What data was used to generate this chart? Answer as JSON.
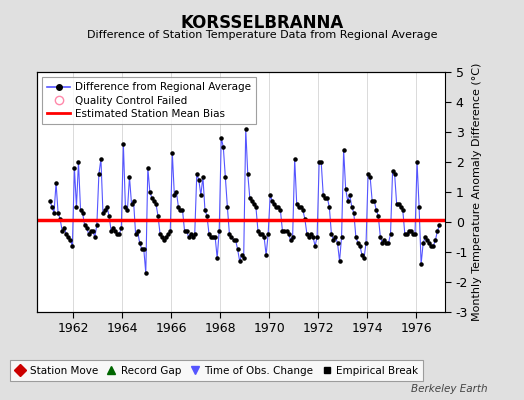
{
  "title": "KORSSELBRANNA",
  "subtitle": "Difference of Station Temperature Data from Regional Average",
  "ylabel_right": "Monthly Temperature Anomaly Difference (°C)",
  "xlim": [
    1960.5,
    1977.2
  ],
  "ylim": [
    -3,
    5
  ],
  "yticks": [
    -3,
    -2,
    -1,
    0,
    1,
    2,
    3,
    4,
    5
  ],
  "bias_value": 0.07,
  "background_color": "#e0e0e0",
  "plot_bg_color": "#ffffff",
  "line_color": "#5555ff",
  "marker_color": "#000000",
  "bias_color": "#ff0000",
  "watermark": "Berkeley Earth",
  "xticks": [
    1962,
    1964,
    1966,
    1968,
    1970,
    1972,
    1974,
    1976
  ],
  "data": [
    [
      1961.042,
      0.7
    ],
    [
      1961.125,
      0.5
    ],
    [
      1961.208,
      0.3
    ],
    [
      1961.292,
      1.3
    ],
    [
      1961.375,
      0.3
    ],
    [
      1961.458,
      0.1
    ],
    [
      1961.542,
      -0.3
    ],
    [
      1961.625,
      -0.2
    ],
    [
      1961.708,
      -0.4
    ],
    [
      1961.792,
      -0.5
    ],
    [
      1961.875,
      -0.6
    ],
    [
      1961.958,
      -0.8
    ],
    [
      1962.042,
      1.8
    ],
    [
      1962.125,
      0.5
    ],
    [
      1962.208,
      2.0
    ],
    [
      1962.292,
      0.4
    ],
    [
      1962.375,
      0.3
    ],
    [
      1962.458,
      -0.1
    ],
    [
      1962.542,
      -0.2
    ],
    [
      1962.625,
      -0.4
    ],
    [
      1962.708,
      -0.3
    ],
    [
      1962.792,
      -0.3
    ],
    [
      1962.875,
      -0.5
    ],
    [
      1962.958,
      -0.1
    ],
    [
      1963.042,
      1.6
    ],
    [
      1963.125,
      2.1
    ],
    [
      1963.208,
      0.3
    ],
    [
      1963.292,
      0.4
    ],
    [
      1963.375,
      0.5
    ],
    [
      1963.458,
      0.2
    ],
    [
      1963.542,
      -0.3
    ],
    [
      1963.625,
      -0.2
    ],
    [
      1963.708,
      -0.3
    ],
    [
      1963.792,
      -0.4
    ],
    [
      1963.875,
      -0.4
    ],
    [
      1963.958,
      -0.2
    ],
    [
      1964.042,
      2.6
    ],
    [
      1964.125,
      0.5
    ],
    [
      1964.208,
      0.4
    ],
    [
      1964.292,
      1.5
    ],
    [
      1964.375,
      0.6
    ],
    [
      1964.458,
      0.7
    ],
    [
      1964.542,
      -0.4
    ],
    [
      1964.625,
      -0.3
    ],
    [
      1964.708,
      -0.7
    ],
    [
      1964.792,
      -0.9
    ],
    [
      1964.875,
      -0.9
    ],
    [
      1964.958,
      -1.7
    ],
    [
      1965.042,
      1.8
    ],
    [
      1965.125,
      1.0
    ],
    [
      1965.208,
      0.8
    ],
    [
      1965.292,
      0.7
    ],
    [
      1965.375,
      0.6
    ],
    [
      1965.458,
      0.2
    ],
    [
      1965.542,
      -0.4
    ],
    [
      1965.625,
      -0.5
    ],
    [
      1965.708,
      -0.6
    ],
    [
      1965.792,
      -0.5
    ],
    [
      1965.875,
      -0.4
    ],
    [
      1965.958,
      -0.3
    ],
    [
      1966.042,
      2.3
    ],
    [
      1966.125,
      0.9
    ],
    [
      1966.208,
      1.0
    ],
    [
      1966.292,
      0.5
    ],
    [
      1966.375,
      0.4
    ],
    [
      1966.458,
      0.4
    ],
    [
      1966.542,
      -0.3
    ],
    [
      1966.625,
      -0.3
    ],
    [
      1966.708,
      -0.5
    ],
    [
      1966.792,
      -0.4
    ],
    [
      1966.875,
      -0.5
    ],
    [
      1966.958,
      -0.4
    ],
    [
      1967.042,
      1.6
    ],
    [
      1967.125,
      1.4
    ],
    [
      1967.208,
      0.9
    ],
    [
      1967.292,
      1.5
    ],
    [
      1967.375,
      0.4
    ],
    [
      1967.458,
      0.2
    ],
    [
      1967.542,
      -0.4
    ],
    [
      1967.625,
      -0.5
    ],
    [
      1967.708,
      -0.5
    ],
    [
      1967.792,
      -0.5
    ],
    [
      1967.875,
      -1.2
    ],
    [
      1967.958,
      -0.3
    ],
    [
      1968.042,
      2.8
    ],
    [
      1968.125,
      2.5
    ],
    [
      1968.208,
      1.5
    ],
    [
      1968.292,
      0.5
    ],
    [
      1968.375,
      -0.4
    ],
    [
      1968.458,
      -0.5
    ],
    [
      1968.542,
      -0.6
    ],
    [
      1968.625,
      -0.6
    ],
    [
      1968.708,
      -0.9
    ],
    [
      1968.792,
      -1.3
    ],
    [
      1968.875,
      -1.1
    ],
    [
      1968.958,
      -1.2
    ],
    [
      1969.042,
      3.1
    ],
    [
      1969.125,
      1.6
    ],
    [
      1969.208,
      0.8
    ],
    [
      1969.292,
      0.7
    ],
    [
      1969.375,
      0.6
    ],
    [
      1969.458,
      0.5
    ],
    [
      1969.542,
      -0.3
    ],
    [
      1969.625,
      -0.4
    ],
    [
      1969.708,
      -0.4
    ],
    [
      1969.792,
      -0.5
    ],
    [
      1969.875,
      -1.1
    ],
    [
      1969.958,
      -0.4
    ],
    [
      1970.042,
      0.9
    ],
    [
      1970.125,
      0.7
    ],
    [
      1970.208,
      0.6
    ],
    [
      1970.292,
      0.5
    ],
    [
      1970.375,
      0.5
    ],
    [
      1970.458,
      0.4
    ],
    [
      1970.542,
      -0.3
    ],
    [
      1970.625,
      -0.3
    ],
    [
      1970.708,
      -0.3
    ],
    [
      1970.792,
      -0.4
    ],
    [
      1970.875,
      -0.6
    ],
    [
      1970.958,
      -0.5
    ],
    [
      1971.042,
      2.1
    ],
    [
      1971.125,
      0.6
    ],
    [
      1971.208,
      0.5
    ],
    [
      1971.292,
      0.5
    ],
    [
      1971.375,
      0.4
    ],
    [
      1971.458,
      0.1
    ],
    [
      1971.542,
      -0.4
    ],
    [
      1971.625,
      -0.5
    ],
    [
      1971.708,
      -0.4
    ],
    [
      1971.792,
      -0.5
    ],
    [
      1971.875,
      -0.8
    ],
    [
      1971.958,
      -0.5
    ],
    [
      1972.042,
      2.0
    ],
    [
      1972.125,
      2.0
    ],
    [
      1972.208,
      0.9
    ],
    [
      1972.292,
      0.8
    ],
    [
      1972.375,
      0.8
    ],
    [
      1972.458,
      0.5
    ],
    [
      1972.542,
      -0.4
    ],
    [
      1972.625,
      -0.6
    ],
    [
      1972.708,
      -0.5
    ],
    [
      1972.792,
      -0.7
    ],
    [
      1972.875,
      -1.3
    ],
    [
      1972.958,
      -0.5
    ],
    [
      1973.042,
      2.4
    ],
    [
      1973.125,
      1.1
    ],
    [
      1973.208,
      0.7
    ],
    [
      1973.292,
      0.9
    ],
    [
      1973.375,
      0.5
    ],
    [
      1973.458,
      0.3
    ],
    [
      1973.542,
      -0.5
    ],
    [
      1973.625,
      -0.7
    ],
    [
      1973.708,
      -0.8
    ],
    [
      1973.792,
      -1.1
    ],
    [
      1973.875,
      -1.2
    ],
    [
      1973.958,
      -0.7
    ],
    [
      1974.042,
      1.6
    ],
    [
      1974.125,
      1.5
    ],
    [
      1974.208,
      0.7
    ],
    [
      1974.292,
      0.7
    ],
    [
      1974.375,
      0.4
    ],
    [
      1974.458,
      0.2
    ],
    [
      1974.542,
      -0.5
    ],
    [
      1974.625,
      -0.7
    ],
    [
      1974.708,
      -0.6
    ],
    [
      1974.792,
      -0.7
    ],
    [
      1974.875,
      -0.7
    ],
    [
      1974.958,
      -0.4
    ],
    [
      1975.042,
      1.7
    ],
    [
      1975.125,
      1.6
    ],
    [
      1975.208,
      0.6
    ],
    [
      1975.292,
      0.6
    ],
    [
      1975.375,
      0.5
    ],
    [
      1975.458,
      0.4
    ],
    [
      1975.542,
      -0.4
    ],
    [
      1975.625,
      -0.4
    ],
    [
      1975.708,
      -0.3
    ],
    [
      1975.792,
      -0.3
    ],
    [
      1975.875,
      -0.4
    ],
    [
      1975.958,
      -0.4
    ],
    [
      1976.042,
      2.0
    ],
    [
      1976.125,
      0.5
    ],
    [
      1976.208,
      -1.4
    ],
    [
      1976.292,
      -0.7
    ],
    [
      1976.375,
      -0.5
    ],
    [
      1976.458,
      -0.6
    ],
    [
      1976.542,
      -0.7
    ],
    [
      1976.625,
      -0.8
    ],
    [
      1976.708,
      -0.8
    ],
    [
      1976.792,
      -0.6
    ],
    [
      1976.875,
      -0.3
    ],
    [
      1976.958,
      -0.1
    ]
  ]
}
